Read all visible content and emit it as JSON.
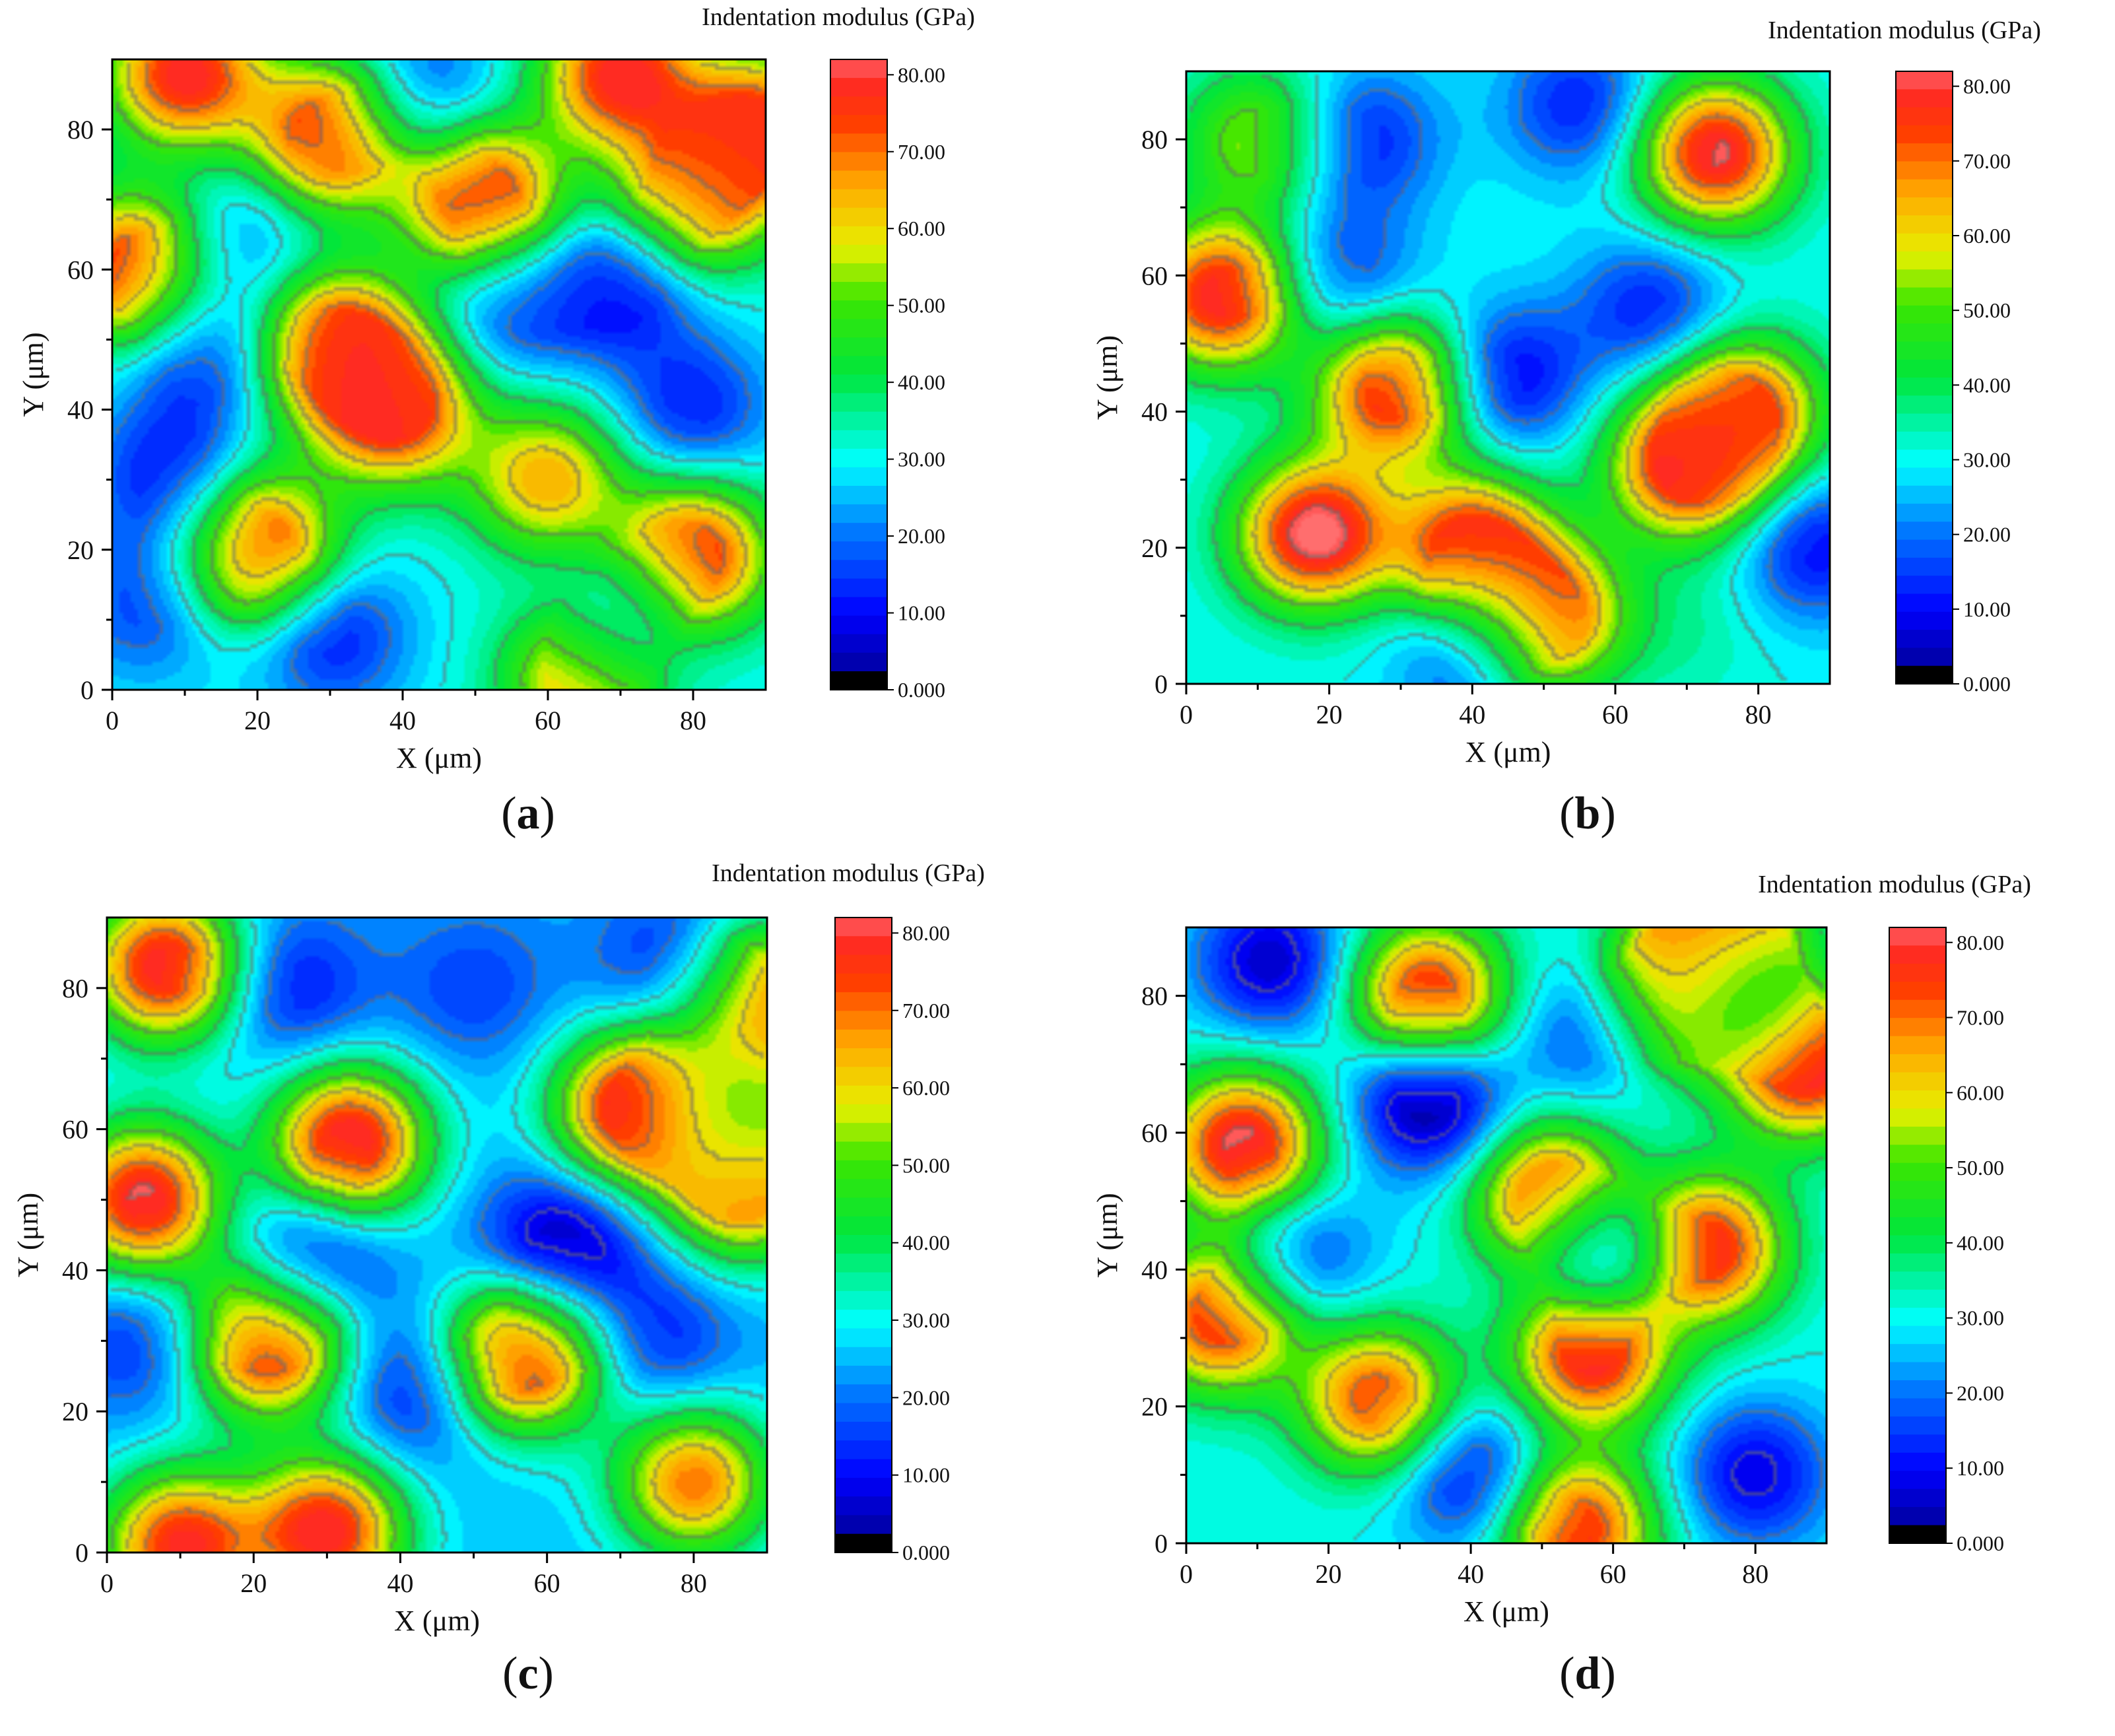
{
  "chart_data": [
    {
      "type": "heatmap",
      "panel_label": "(a)",
      "title": "",
      "xlabel": "X (μm)",
      "ylabel": "Y (μm)",
      "colorbar_title": "Indentation modulus (GPa)",
      "xlim": [
        0,
        90
      ],
      "ylim": [
        0,
        90
      ],
      "x_ticks": [
        0,
        20,
        40,
        60,
        80
      ],
      "y_ticks": [
        0,
        20,
        40,
        60,
        80
      ],
      "color_ticks": [
        "80.00",
        "70.00",
        "60.00",
        "50.00",
        "40.00",
        "30.00",
        "20.00",
        "10.00",
        "0.000"
      ],
      "color_range": [
        0,
        82
      ],
      "background_value": 30,
      "features": [
        {
          "x": 10,
          "y": 88,
          "value": 80
        },
        {
          "x": 30,
          "y": 79,
          "value": 80
        },
        {
          "x": 51,
          "y": 70,
          "value": 82
        },
        {
          "x": 3,
          "y": 60,
          "value": 80
        },
        {
          "x": 31,
          "y": 49,
          "value": 80
        },
        {
          "x": 39,
          "y": 40,
          "value": 78
        },
        {
          "x": 20,
          "y": 20,
          "value": 82
        },
        {
          "x": 60,
          "y": 30,
          "value": 65
        },
        {
          "x": 80,
          "y": 19,
          "value": 80
        },
        {
          "x": 70,
          "y": 88,
          "value": 80
        },
        {
          "x": 80,
          "y": 70,
          "value": 70
        },
        {
          "x": 89,
          "y": 80,
          "value": 78
        },
        {
          "x": 65,
          "y": 2,
          "value": 70
        },
        {
          "x": 70,
          "y": 58,
          "value": 8
        },
        {
          "x": 55,
          "y": 55,
          "value": 15
        },
        {
          "x": 8,
          "y": 30,
          "value": 10
        },
        {
          "x": 5,
          "y": 12,
          "value": 15
        },
        {
          "x": 30,
          "y": 8,
          "value": 10
        },
        {
          "x": 43,
          "y": 85,
          "value": 15
        },
        {
          "x": 70,
          "y": 10,
          "value": 15
        },
        {
          "x": 80,
          "y": 40,
          "value": 12
        },
        {
          "x": 12,
          "y": 48,
          "value": 12
        },
        {
          "x": 18,
          "y": 65,
          "value": 18
        }
      ]
    },
    {
      "type": "heatmap",
      "panel_label": "(b)",
      "title": "",
      "xlabel": "X (μm)",
      "ylabel": "Y (μm)",
      "colorbar_title": "Indentation modulus (GPa)",
      "xlim": [
        0,
        90
      ],
      "ylim": [
        0,
        90
      ],
      "x_ticks": [
        0,
        20,
        40,
        60,
        80
      ],
      "y_ticks": [
        0,
        20,
        40,
        60,
        80
      ],
      "color_ticks": [
        "80.00",
        "70.00",
        "60.00",
        "50.00",
        "40.00",
        "30.00",
        "20.00",
        "10.00",
        "0.000"
      ],
      "color_range": [
        0,
        82
      ],
      "background_value": 30,
      "features": [
        {
          "x": 5,
          "y": 57,
          "value": 82
        },
        {
          "x": 18,
          "y": 22,
          "value": 85
        },
        {
          "x": 29,
          "y": 43,
          "value": 80
        },
        {
          "x": 40,
          "y": 20,
          "value": 80
        },
        {
          "x": 50,
          "y": 10,
          "value": 80
        },
        {
          "x": 74,
          "y": 78,
          "value": 82
        },
        {
          "x": 70,
          "y": 32,
          "value": 80
        },
        {
          "x": 78,
          "y": 40,
          "value": 75
        },
        {
          "x": 10,
          "y": 80,
          "value": 55
        },
        {
          "x": 45,
          "y": 45,
          "value": 8
        },
        {
          "x": 65,
          "y": 55,
          "value": 12
        },
        {
          "x": 88,
          "y": 20,
          "value": 10
        },
        {
          "x": 25,
          "y": 80,
          "value": 12
        },
        {
          "x": 55,
          "y": 85,
          "value": 12
        },
        {
          "x": 40,
          "y": 5,
          "value": 12
        },
        {
          "x": 22,
          "y": 60,
          "value": 15
        },
        {
          "x": 70,
          "y": 8,
          "value": 35
        }
      ]
    },
    {
      "type": "heatmap",
      "panel_label": "(c)",
      "title": "",
      "xlabel": "X (μm)",
      "ylabel": "Y (μm)",
      "colorbar_title": "Indentation modulus (GPa)",
      "xlim": [
        0,
        90
      ],
      "ylim": [
        0,
        90
      ],
      "x_ticks": [
        0,
        20,
        40,
        60,
        80
      ],
      "y_ticks": [
        0,
        20,
        40,
        60,
        80
      ],
      "color_ticks": [
        "80.00",
        "70.00",
        "60.00",
        "50.00",
        "40.00",
        "30.00",
        "20.00",
        "10.00",
        "0.000"
      ],
      "color_range": [
        0,
        82
      ],
      "background_value": 25,
      "features": [
        {
          "x": 8,
          "y": 83,
          "value": 82
        },
        {
          "x": 33,
          "y": 58,
          "value": 84
        },
        {
          "x": 5,
          "y": 50,
          "value": 82
        },
        {
          "x": 22,
          "y": 30,
          "value": 84
        },
        {
          "x": 57,
          "y": 28,
          "value": 84
        },
        {
          "x": 72,
          "y": 63,
          "value": 84
        },
        {
          "x": 87,
          "y": 52,
          "value": 72
        },
        {
          "x": 88,
          "y": 78,
          "value": 80
        },
        {
          "x": 30,
          "y": 3,
          "value": 80
        },
        {
          "x": 10,
          "y": 1,
          "value": 78
        },
        {
          "x": 80,
          "y": 10,
          "value": 70
        },
        {
          "x": 62,
          "y": 43,
          "value": 0
        },
        {
          "x": 28,
          "y": 42,
          "value": 5
        },
        {
          "x": 78,
          "y": 83,
          "value": 8
        },
        {
          "x": 25,
          "y": 80,
          "value": 10
        },
        {
          "x": 42,
          "y": 23,
          "value": 10
        },
        {
          "x": 5,
          "y": 30,
          "value": 12
        },
        {
          "x": 75,
          "y": 30,
          "value": 12
        },
        {
          "x": 50,
          "y": 80,
          "value": 15
        },
        {
          "x": 85,
          "y": 62,
          "value": 40
        }
      ]
    },
    {
      "type": "heatmap",
      "panel_label": "(d)",
      "title": "",
      "xlabel": "X (μm)",
      "ylabel": "Y (μm)",
      "colorbar_title": "Indentation modulus (GPa)",
      "xlim": [
        0,
        90
      ],
      "ylim": [
        0,
        90
      ],
      "x_ticks": [
        0,
        20,
        40,
        60,
        80
      ],
      "y_ticks": [
        0,
        20,
        40,
        60,
        80
      ],
      "color_ticks": [
        "80.00",
        "70.00",
        "60.00",
        "50.00",
        "40.00",
        "30.00",
        "20.00",
        "10.00",
        "0.000"
      ],
      "color_range": [
        0,
        82
      ],
      "background_value": 30,
      "features": [
        {
          "x": 8,
          "y": 58,
          "value": 84
        },
        {
          "x": 52,
          "y": 50,
          "value": 86
        },
        {
          "x": 57,
          "y": 28,
          "value": 84
        },
        {
          "x": 73,
          "y": 43,
          "value": 82
        },
        {
          "x": 87,
          "y": 70,
          "value": 84
        },
        {
          "x": 5,
          "y": 33,
          "value": 80
        },
        {
          "x": 27,
          "y": 21,
          "value": 75
        },
        {
          "x": 34,
          "y": 80,
          "value": 80
        },
        {
          "x": 55,
          "y": 2,
          "value": 78
        },
        {
          "x": 69,
          "y": 80,
          "value": 80
        },
        {
          "x": 76,
          "y": 89,
          "value": 78
        },
        {
          "x": 34,
          "y": 65,
          "value": -2
        },
        {
          "x": 58,
          "y": 43,
          "value": -2
        },
        {
          "x": 12,
          "y": 85,
          "value": 5
        },
        {
          "x": 40,
          "y": 10,
          "value": 8
        },
        {
          "x": 80,
          "y": 10,
          "value": 8
        },
        {
          "x": 58,
          "y": 75,
          "value": 12
        },
        {
          "x": 15,
          "y": 42,
          "value": 12
        },
        {
          "x": 78,
          "y": 80,
          "value": 20
        }
      ]
    }
  ]
}
